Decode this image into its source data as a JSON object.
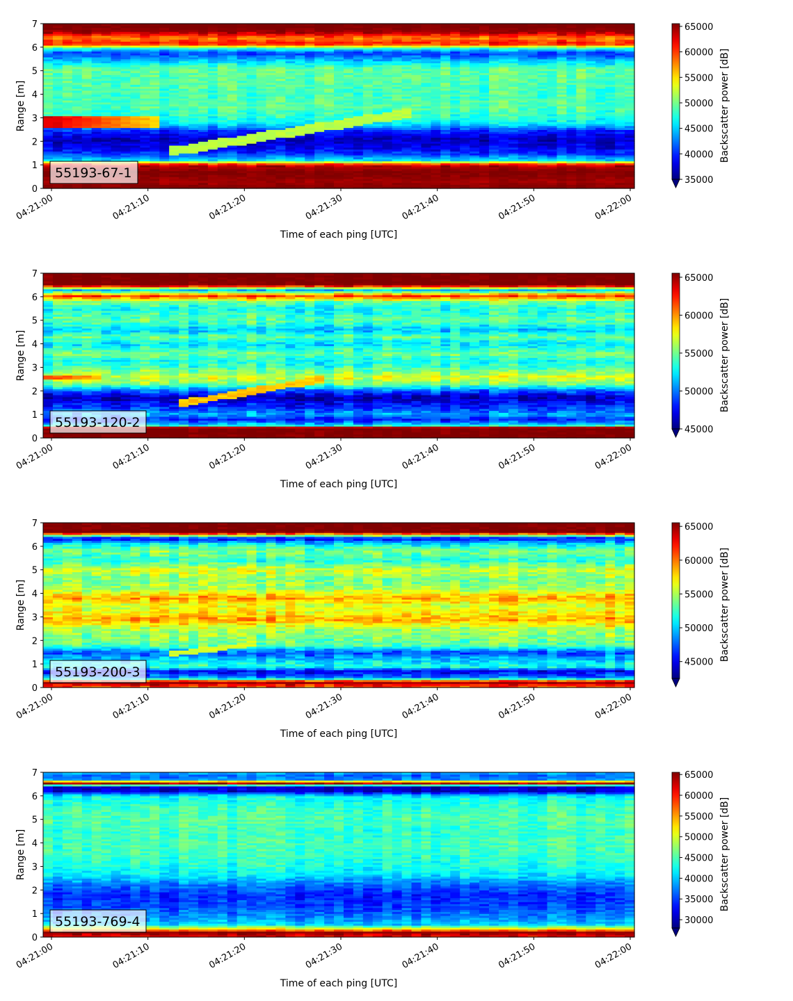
{
  "chart_data": [
    {
      "type": "heatmap",
      "label": "55193-67-1",
      "xlabel": "Time of each ping [UTC]",
      "ylabel": "Range [m]",
      "colorbar_label": "Backscatter power [dB]",
      "colormap": "jet",
      "xlim": [
        "04:21:00",
        "04:22:00"
      ],
      "xticks": [
        "04:21:00",
        "04:21:10",
        "04:21:20",
        "04:21:30",
        "04:21:40",
        "04:21:50",
        "04:22:00"
      ],
      "ylim": [
        0,
        7
      ],
      "yticks": [
        "0",
        "1",
        "2",
        "3",
        "4",
        "5",
        "6",
        "7"
      ],
      "clim": [
        35000,
        65535
      ],
      "cticks": [
        "35000",
        "40000",
        "45000",
        "50000",
        "55000",
        "60000",
        "65000"
      ],
      "base_profile": [
        {
          "r": 0.0,
          "v": 65535
        },
        {
          "r": 0.3,
          "v": 64500
        },
        {
          "r": 0.7,
          "v": 65535
        },
        {
          "r": 1.0,
          "v": 63500
        },
        {
          "r": 1.2,
          "v": 46000
        },
        {
          "r": 1.45,
          "v": 41000
        },
        {
          "r": 1.7,
          "v": 38500
        },
        {
          "r": 2.1,
          "v": 37000
        },
        {
          "r": 2.45,
          "v": 40000
        },
        {
          "r": 2.75,
          "v": 46000
        },
        {
          "r": 3.0,
          "v": 47500
        },
        {
          "r": 3.5,
          "v": 49000
        },
        {
          "r": 4.0,
          "v": 48500
        },
        {
          "r": 4.6,
          "v": 49000
        },
        {
          "r": 5.1,
          "v": 49500
        },
        {
          "r": 5.5,
          "v": 44000
        },
        {
          "r": 5.75,
          "v": 40500
        },
        {
          "r": 5.95,
          "v": 47000
        },
        {
          "r": 6.15,
          "v": 61500
        },
        {
          "r": 6.4,
          "v": 58000
        },
        {
          "r": 6.65,
          "v": 64500
        },
        {
          "r": 6.85,
          "v": 65535
        },
        {
          "r": 7.0,
          "v": 65535
        }
      ],
      "features": [
        {
          "kind": "band",
          "t0": 0,
          "t1": 11.5,
          "r0": 2.6,
          "r1": 3.05,
          "v": 63000,
          "v_end": 55000
        },
        {
          "kind": "line",
          "t0": 13,
          "r0": 1.6,
          "t1": 37,
          "r1": 3.2,
          "w": 0.2,
          "v": 52000
        }
      ],
      "noise": 2500
    },
    {
      "type": "heatmap",
      "label": "55193-120-2",
      "xlabel": "Time of each ping [UTC]",
      "ylabel": "Range [m]",
      "colorbar_label": "Backscatter power [dB]",
      "colormap": "jet",
      "xlim": [
        "04:21:00",
        "04:22:00"
      ],
      "xticks": [
        "04:21:00",
        "04:21:10",
        "04:21:20",
        "04:21:30",
        "04:21:40",
        "04:21:50",
        "04:22:00"
      ],
      "ylim": [
        0,
        7
      ],
      "yticks": [
        "0",
        "1",
        "2",
        "3",
        "4",
        "5",
        "6",
        "7"
      ],
      "clim": [
        45000,
        65535
      ],
      "cticks": [
        "45000",
        "50000",
        "55000",
        "60000",
        "65000"
      ],
      "base_profile": [
        {
          "r": 0.0,
          "v": 65535
        },
        {
          "r": 0.45,
          "v": 65535
        },
        {
          "r": 0.55,
          "v": 52000
        },
        {
          "r": 0.8,
          "v": 48000
        },
        {
          "r": 1.0,
          "v": 51000
        },
        {
          "r": 1.3,
          "v": 48500
        },
        {
          "r": 1.75,
          "v": 46000
        },
        {
          "r": 2.05,
          "v": 50000
        },
        {
          "r": 2.3,
          "v": 55000
        },
        {
          "r": 2.6,
          "v": 57000
        },
        {
          "r": 3.0,
          "v": 54000
        },
        {
          "r": 3.3,
          "v": 53000
        },
        {
          "r": 3.6,
          "v": 55000
        },
        {
          "r": 4.0,
          "v": 52000
        },
        {
          "r": 4.3,
          "v": 54500
        },
        {
          "r": 4.6,
          "v": 51500
        },
        {
          "r": 5.0,
          "v": 54500
        },
        {
          "r": 5.5,
          "v": 53000
        },
        {
          "r": 5.8,
          "v": 55000
        },
        {
          "r": 6.05,
          "v": 62000
        },
        {
          "r": 6.3,
          "v": 51000
        },
        {
          "r": 6.5,
          "v": 65535
        },
        {
          "r": 7.0,
          "v": 65535
        }
      ],
      "features": [
        {
          "kind": "band",
          "t0": 0,
          "t1": 5.5,
          "r0": 2.5,
          "r1": 2.7,
          "v": 62000,
          "v_end": 59000
        },
        {
          "kind": "line",
          "t0": 13.5,
          "r0": 1.45,
          "t1": 28,
          "r1": 2.5,
          "w": 0.15,
          "v": 59000
        }
      ],
      "noise": 2200
    },
    {
      "type": "heatmap",
      "label": "55193-200-3",
      "xlabel": "Time of each ping [UTC]",
      "ylabel": "Range [m]",
      "colorbar_label": "Backscatter power [dB]",
      "colormap": "jet",
      "xlim": [
        "04:21:00",
        "04:22:00"
      ],
      "xticks": [
        "04:21:00",
        "04:21:10",
        "04:21:20",
        "04:21:30",
        "04:21:40",
        "04:21:50",
        "04:22:00"
      ],
      "ylim": [
        0,
        7
      ],
      "yticks": [
        "0",
        "1",
        "2",
        "3",
        "4",
        "5",
        "6",
        "7"
      ],
      "clim": [
        42500,
        65535
      ],
      "cticks": [
        "45000",
        "50000",
        "55000",
        "60000",
        "65000"
      ],
      "base_profile": [
        {
          "r": 0.0,
          "v": 60000
        },
        {
          "r": 0.25,
          "v": 65535
        },
        {
          "r": 0.4,
          "v": 49000
        },
        {
          "r": 0.7,
          "v": 45000
        },
        {
          "r": 0.9,
          "v": 52000
        },
        {
          "r": 1.2,
          "v": 50000
        },
        {
          "r": 1.5,
          "v": 47000
        },
        {
          "r": 1.8,
          "v": 53000
        },
        {
          "r": 2.1,
          "v": 54000
        },
        {
          "r": 2.5,
          "v": 55000
        },
        {
          "r": 2.9,
          "v": 59000
        },
        {
          "r": 3.2,
          "v": 57000
        },
        {
          "r": 3.5,
          "v": 56000
        },
        {
          "r": 3.8,
          "v": 59000
        },
        {
          "r": 4.2,
          "v": 55000
        },
        {
          "r": 4.6,
          "v": 54000
        },
        {
          "r": 5.0,
          "v": 56000
        },
        {
          "r": 5.4,
          "v": 52000
        },
        {
          "r": 5.8,
          "v": 54000
        },
        {
          "r": 6.1,
          "v": 51000
        },
        {
          "r": 6.35,
          "v": 45000
        },
        {
          "r": 6.6,
          "v": 65535
        },
        {
          "r": 7.0,
          "v": 65535
        }
      ],
      "features": [
        {
          "kind": "line",
          "t0": 13,
          "r0": 1.45,
          "t1": 21,
          "r1": 1.85,
          "w": 0.12,
          "v": 56000
        }
      ],
      "noise": 2600
    },
    {
      "type": "heatmap",
      "label": "55193-769-4",
      "xlabel": "Time of each ping [UTC]",
      "ylabel": "Range [m]",
      "colorbar_label": "Backscatter power [dB]",
      "colormap": "jet",
      "xlim": [
        "04:21:00",
        "04:22:00"
      ],
      "xticks": [
        "04:21:00",
        "04:21:10",
        "04:21:20",
        "04:21:30",
        "04:21:40",
        "04:21:50",
        "04:22:00"
      ],
      "ylim": [
        0,
        7
      ],
      "yticks": [
        "0",
        "1",
        "2",
        "3",
        "4",
        "5",
        "6",
        "7"
      ],
      "clim": [
        28000,
        65535
      ],
      "cticks": [
        "30000",
        "35000",
        "40000",
        "45000",
        "50000",
        "55000",
        "60000",
        "65000"
      ],
      "base_profile": [
        {
          "r": 0.0,
          "v": 60000
        },
        {
          "r": 0.2,
          "v": 65535
        },
        {
          "r": 0.35,
          "v": 52000
        },
        {
          "r": 0.55,
          "v": 40000
        },
        {
          "r": 0.9,
          "v": 37500
        },
        {
          "r": 1.3,
          "v": 35000
        },
        {
          "r": 1.8,
          "v": 34000
        },
        {
          "r": 2.2,
          "v": 36500
        },
        {
          "r": 2.6,
          "v": 41000
        },
        {
          "r": 3.0,
          "v": 43000
        },
        {
          "r": 3.5,
          "v": 44000
        },
        {
          "r": 4.0,
          "v": 44500
        },
        {
          "r": 4.5,
          "v": 44000
        },
        {
          "r": 5.0,
          "v": 45000
        },
        {
          "r": 5.5,
          "v": 44000
        },
        {
          "r": 6.0,
          "v": 42000
        },
        {
          "r": 6.2,
          "v": 31000
        },
        {
          "r": 6.4,
          "v": 30500
        },
        {
          "r": 6.55,
          "v": 65535
        },
        {
          "r": 6.7,
          "v": 38000
        },
        {
          "r": 6.9,
          "v": 36000
        },
        {
          "r": 7.0,
          "v": 40000
        }
      ],
      "features": [],
      "noise": 3000
    }
  ]
}
